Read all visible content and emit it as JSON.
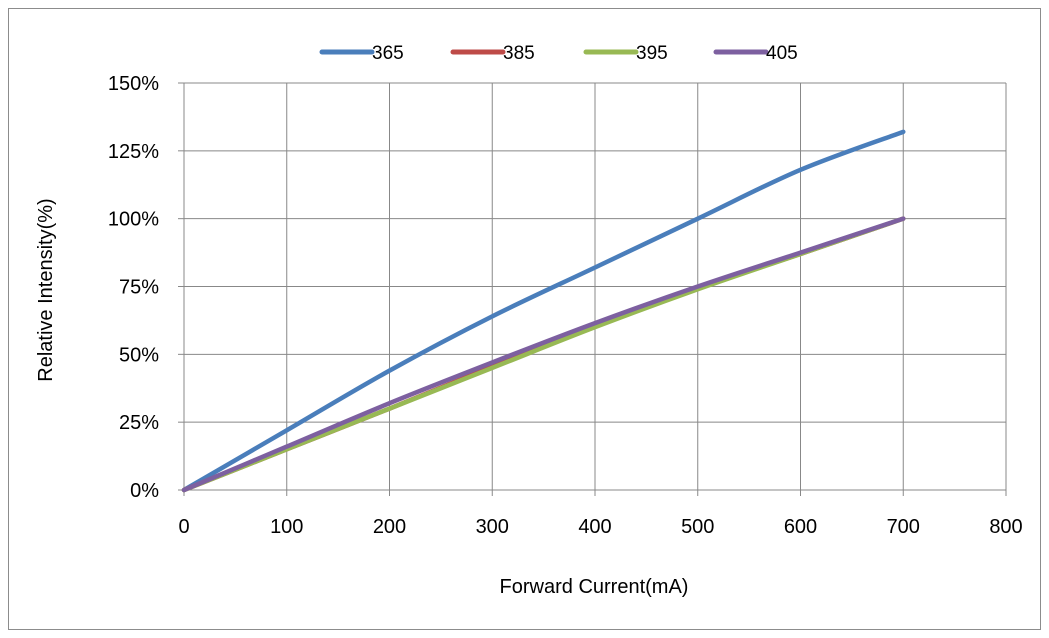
{
  "chart_data": {
    "type": "line",
    "title": "",
    "xlabel": "Forward Current(mA)",
    "ylabel": "Relative Intensity(%)",
    "xlim": [
      0,
      800
    ],
    "ylim": [
      0,
      150
    ],
    "xticks": [
      0,
      100,
      200,
      300,
      400,
      500,
      600,
      700,
      800
    ],
    "xtick_labels": [
      "0",
      "100",
      "200",
      "300",
      "400",
      "500",
      "600",
      "700",
      "800"
    ],
    "yticks": [
      0,
      25,
      50,
      75,
      100,
      125,
      150
    ],
    "ytick_labels": [
      "0%",
      "25%",
      "50%",
      "75%",
      "100%",
      "125%",
      "150%"
    ],
    "grid": true,
    "legend_position": "top",
    "series": [
      {
        "name": "365",
        "color": "#4a7ebb",
        "x": [
          0,
          100,
          200,
          300,
          400,
          500,
          600,
          700
        ],
        "values": [
          0,
          22,
          44,
          64,
          82,
          100,
          118,
          132
        ]
      },
      {
        "name": "385",
        "color": "#be4b48",
        "x": [
          0,
          100,
          200,
          300,
          400,
          500,
          600,
          700
        ],
        "values": [
          0,
          15,
          30,
          45.5,
          60.5,
          74.5,
          87,
          100
        ]
      },
      {
        "name": "395",
        "color": "#98b954",
        "x": [
          0,
          100,
          200,
          300,
          400,
          500,
          600,
          700
        ],
        "values": [
          0,
          15,
          30,
          45,
          60,
          74,
          87,
          100
        ]
      },
      {
        "name": "405",
        "color": "#7d60a0",
        "x": [
          0,
          100,
          200,
          300,
          400,
          500,
          600,
          700
        ],
        "values": [
          0,
          16,
          32,
          47,
          61.5,
          75,
          87.5,
          100
        ]
      }
    ]
  }
}
